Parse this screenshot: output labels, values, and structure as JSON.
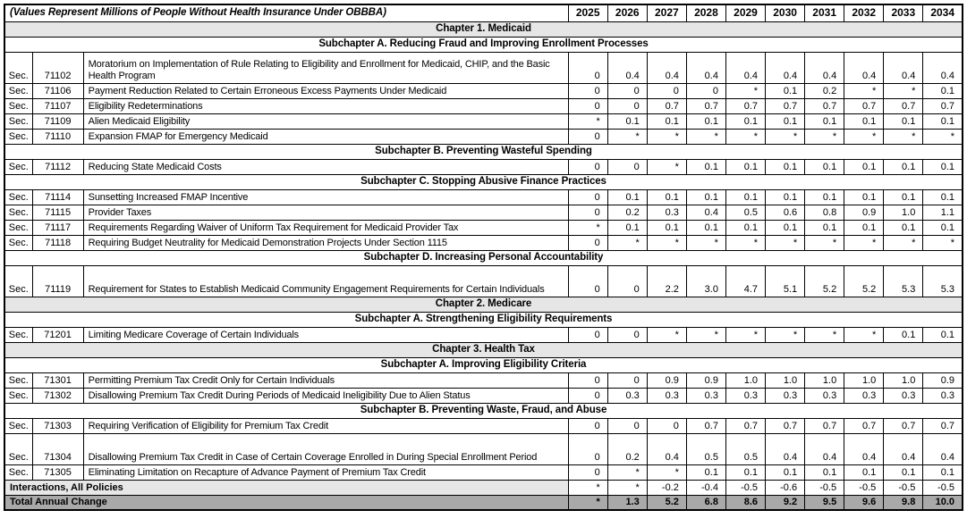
{
  "header": {
    "title": "(Values Represent Millions of People Without Health Insurance Under OBBBA)",
    "years": [
      "2025",
      "2026",
      "2027",
      "2028",
      "2029",
      "2030",
      "2031",
      "2032",
      "2033",
      "2034"
    ]
  },
  "rows": [
    {
      "type": "chapter",
      "label": "Chapter 1. Medicaid"
    },
    {
      "type": "subchapter",
      "label": "Subchapter A. Reducing Fraud and Improving Enrollment Processes"
    },
    {
      "type": "section",
      "sec": "Sec.",
      "num": "71102",
      "desc": "Moratorium on Implementation of Rule Relating to Eligibility and Enrollment for Medicaid, CHIP, and the Basic Health Program",
      "values": [
        "0",
        "0.4",
        "0.4",
        "0.4",
        "0.4",
        "0.4",
        "0.4",
        "0.4",
        "0.4",
        "0.4"
      ]
    },
    {
      "type": "section",
      "sec": "Sec.",
      "num": "71106",
      "desc": "Payment Reduction Related to Certain Erroneous Excess Payments Under Medicaid",
      "values": [
        "0",
        "0",
        "0",
        "0",
        "*",
        "0.1",
        "0.2",
        "*",
        "*",
        "0.1"
      ]
    },
    {
      "type": "section",
      "sec": "Sec.",
      "num": "71107",
      "desc": "Eligibility Redeterminations",
      "values": [
        "0",
        "0",
        "0.7",
        "0.7",
        "0.7",
        "0.7",
        "0.7",
        "0.7",
        "0.7",
        "0.7"
      ]
    },
    {
      "type": "section",
      "sec": "Sec.",
      "num": "71109",
      "desc": "Alien Medicaid Eligibility",
      "values": [
        "*",
        "0.1",
        "0.1",
        "0.1",
        "0.1",
        "0.1",
        "0.1",
        "0.1",
        "0.1",
        "0.1"
      ]
    },
    {
      "type": "section",
      "sec": "Sec.",
      "num": "71110",
      "desc": "Expansion FMAP for Emergency Medicaid",
      "values": [
        "0",
        "*",
        "*",
        "*",
        "*",
        "*",
        "*",
        "*",
        "*",
        "*"
      ]
    },
    {
      "type": "subchapter",
      "label": "Subchapter B. Preventing Wasteful Spending"
    },
    {
      "type": "section",
      "sec": "Sec.",
      "num": "71112",
      "desc": "Reducing State Medicaid Costs",
      "values": [
        "0",
        "0",
        "*",
        "0.1",
        "0.1",
        "0.1",
        "0.1",
        "0.1",
        "0.1",
        "0.1"
      ]
    },
    {
      "type": "subchapter",
      "label": "Subchapter C. Stopping Abusive Finance Practices"
    },
    {
      "type": "section",
      "sec": "Sec.",
      "num": "71114",
      "desc": "Sunsetting Increased FMAP Incentive",
      "values": [
        "0",
        "0.1",
        "0.1",
        "0.1",
        "0.1",
        "0.1",
        "0.1",
        "0.1",
        "0.1",
        "0.1"
      ]
    },
    {
      "type": "section",
      "sec": "Sec.",
      "num": "71115",
      "desc": "Provider Taxes",
      "values": [
        "0",
        "0.2",
        "0.3",
        "0.4",
        "0.5",
        "0.6",
        "0.8",
        "0.9",
        "1.0",
        "1.1"
      ]
    },
    {
      "type": "section",
      "sec": "Sec.",
      "num": "71117",
      "desc": "Requirements Regarding Waiver of Uniform Tax Requirement for Medicaid Provider Tax",
      "values": [
        "*",
        "0.1",
        "0.1",
        "0.1",
        "0.1",
        "0.1",
        "0.1",
        "0.1",
        "0.1",
        "0.1"
      ]
    },
    {
      "type": "section",
      "sec": "Sec.",
      "num": "71118",
      "desc": "Requiring Budget Neutrality for Medicaid Demonstration Projects Under Section 1115",
      "values": [
        "0",
        "*",
        "*",
        "*",
        "*",
        "*",
        "*",
        "*",
        "*",
        "*"
      ]
    },
    {
      "type": "subchapter",
      "label": "Subchapter D. Increasing Personal Accountability"
    },
    {
      "type": "section",
      "sec": "Sec.",
      "num": "71119",
      "desc": "Requirement for States to Establish Medicaid Community Engagement Requirements for Certain Individuals",
      "values": [
        "0",
        "0",
        "2.2",
        "3.0",
        "4.7",
        "5.1",
        "5.2",
        "5.2",
        "5.3",
        "5.3"
      ]
    },
    {
      "type": "chapter",
      "label": "Chapter 2. Medicare"
    },
    {
      "type": "subchapter",
      "label": "Subchapter A. Strengthening Eligibility Requirements"
    },
    {
      "type": "section",
      "sec": "Sec.",
      "num": "71201",
      "desc": "Limiting Medicare Coverage of Certain Individuals",
      "values": [
        "0",
        "0",
        "*",
        "*",
        "*",
        "*",
        "*",
        "*",
        "0.1",
        "0.1"
      ]
    },
    {
      "type": "chapter",
      "label": "Chapter 3. Health Tax"
    },
    {
      "type": "subchapter",
      "label": "Subchapter A. Improving Eligibility Criteria"
    },
    {
      "type": "section",
      "sec": "Sec.",
      "num": "71301",
      "desc": "Permitting Premium Tax Credit Only for Certain Individuals",
      "values": [
        "0",
        "0",
        "0.9",
        "0.9",
        "1.0",
        "1.0",
        "1.0",
        "1.0",
        "1.0",
        "0.9"
      ]
    },
    {
      "type": "section",
      "sec": "Sec.",
      "num": "71302",
      "desc": "Disallowing Premium Tax Credit During Periods of Medicaid Ineligibility Due to Alien Status",
      "values": [
        "0",
        "0.3",
        "0.3",
        "0.3",
        "0.3",
        "0.3",
        "0.3",
        "0.3",
        "0.3",
        "0.3"
      ]
    },
    {
      "type": "subchapter",
      "label": "Subchapter B. Preventing Waste, Fraud, and Abuse"
    },
    {
      "type": "section",
      "sec": "Sec.",
      "num": "71303",
      "desc": "Requiring Verification of Eligibility for Premium Tax Credit",
      "values": [
        "0",
        "0",
        "0",
        "0.7",
        "0.7",
        "0.7",
        "0.7",
        "0.7",
        "0.7",
        "0.7"
      ]
    },
    {
      "type": "section",
      "sec": "Sec.",
      "num": "71304",
      "desc": "Disallowing Premium Tax Credit in Case of Certain Coverage Enrolled in During Special Enrollment Period",
      "values": [
        "0",
        "0.2",
        "0.4",
        "0.5",
        "0.5",
        "0.4",
        "0.4",
        "0.4",
        "0.4",
        "0.4"
      ]
    },
    {
      "type": "section",
      "sec": "Sec.",
      "num": "71305",
      "desc": "Eliminating Limitation on Recapture of Advance Payment of Premium Tax Credit",
      "values": [
        "0",
        "*",
        "*",
        "0.1",
        "0.1",
        "0.1",
        "0.1",
        "0.1",
        "0.1",
        "0.1"
      ]
    },
    {
      "type": "summary",
      "label": "Interactions, All Policies",
      "values": [
        "*",
        "*",
        "-0.2",
        "-0.4",
        "-0.5",
        "-0.6",
        "-0.5",
        "-0.5",
        "-0.5",
        "-0.5"
      ]
    },
    {
      "type": "total",
      "label": "Total Annual Change",
      "values": [
        "*",
        "1.3",
        "5.2",
        "6.8",
        "8.6",
        "9.2",
        "9.5",
        "9.6",
        "9.8",
        "10.0"
      ]
    }
  ],
  "colors": {
    "chapter_bg": "#e6e6e6",
    "summary_label_bg": "#e7e7e7",
    "total_bg": "#a9a9a9",
    "border": "#000000"
  }
}
